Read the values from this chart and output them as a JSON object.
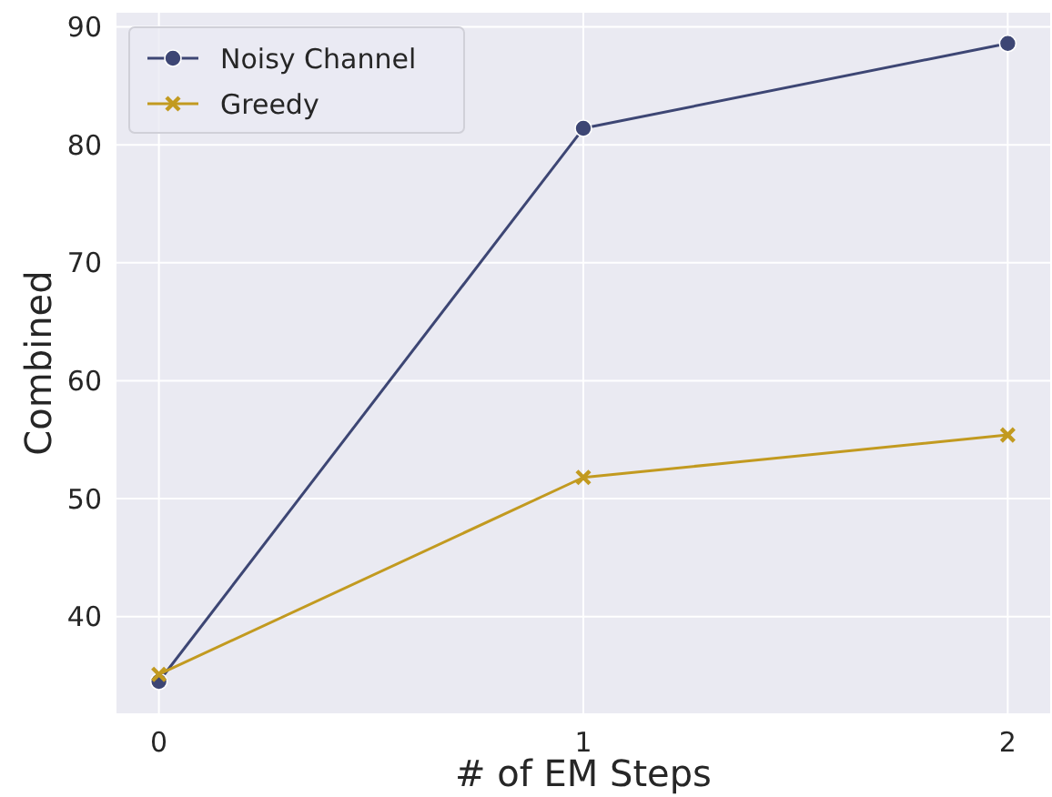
{
  "chart_data": {
    "type": "line",
    "xlabel": "# of EM Steps",
    "ylabel": "Combined",
    "x": [
      0,
      1,
      2
    ],
    "series": [
      {
        "name": "Noisy Channel",
        "color": "#3d4674",
        "values": [
          34.5,
          81.4,
          88.6
        ],
        "marker": "circle"
      },
      {
        "name": "Greedy",
        "color": "#c29a20",
        "values": [
          35.1,
          51.8,
          55.4
        ],
        "marker": "cross"
      }
    ],
    "xlim": [
      -0.1,
      2.1
    ],
    "ylim": [
      31.8,
      91.2
    ],
    "xticks": [
      0,
      1,
      2
    ],
    "yticks": [
      40,
      50,
      60,
      70,
      80,
      90
    ],
    "grid": true,
    "legend": "top left",
    "line_style": "solid"
  }
}
